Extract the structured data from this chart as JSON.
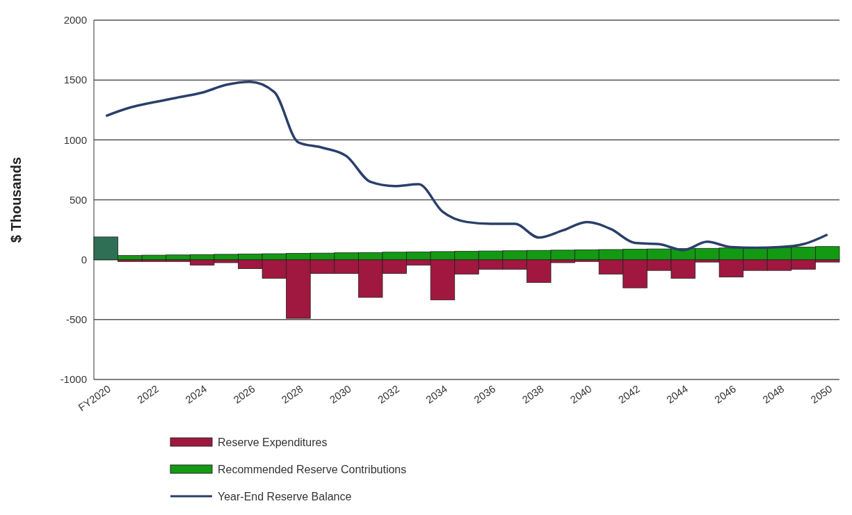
{
  "chart_data": {
    "type": "bar",
    "ylabel": "$ Thousands",
    "categories": [
      "FY2020",
      null,
      "2022",
      null,
      "2024",
      null,
      "2026",
      null,
      "2028",
      null,
      "2030",
      null,
      "2032",
      null,
      "2034",
      null,
      "2036",
      null,
      "2038",
      null,
      "2040",
      null,
      "2042",
      null,
      "2044",
      null,
      "2046",
      null,
      "2048",
      null,
      "2050"
    ],
    "series": [
      {
        "name": "Reserve Expenditures",
        "color": "#a0173f",
        "values": [
          0,
          -15,
          -15,
          -15,
          -45,
          -25,
          -75,
          -155,
          -490,
          -115,
          -115,
          -315,
          -115,
          -45,
          -335,
          -120,
          -80,
          -80,
          -190,
          -25,
          -15,
          -120,
          -235,
          -90,
          -155,
          -20,
          -145,
          -90,
          -90,
          -80,
          -20
        ]
      },
      {
        "name": "Recommended Reserve Contributions",
        "color": "#129a12",
        "colors": [
          "#2f6f55",
          "#129a12",
          "#129a12",
          "#129a12",
          "#129a12",
          "#129a12",
          "#129a12",
          "#129a12",
          "#129a12",
          "#129a12",
          "#129a12",
          "#129a12",
          "#129a12",
          "#129a12",
          "#129a12",
          "#129a12",
          "#129a12",
          "#129a12",
          "#129a12",
          "#129a12",
          "#129a12",
          "#129a12",
          "#129a12",
          "#129a12",
          "#129a12",
          "#129a12",
          "#129a12",
          "#129a12",
          "#129a12",
          "#129a12",
          "#129a12"
        ],
        "values": [
          190,
          35,
          38,
          40,
          43,
          45,
          48,
          50,
          53,
          55,
          58,
          60,
          63,
          65,
          68,
          70,
          73,
          75,
          78,
          80,
          83,
          85,
          88,
          90,
          93,
          95,
          98,
          100,
          103,
          105,
          110
        ]
      },
      {
        "name": "Year-End Reserve Balance",
        "type": "line",
        "color": "#2b3f6b",
        "values": [
          1200,
          1270,
          1315,
          1355,
          1395,
          1460,
          1485,
          1400,
          980,
          935,
          865,
          650,
          615,
          630,
          400,
          315,
          300,
          300,
          185,
          245,
          315,
          255,
          140,
          130,
          80,
          150,
          105,
          100,
          105,
          130,
          210
        ]
      }
    ],
    "ylim": [
      -1000,
      2000
    ],
    "yticks": [
      -1000,
      -500,
      0,
      500,
      1000,
      1500,
      2000
    ],
    "grid": "y",
    "legend": "bottom",
    "stacked": true
  }
}
